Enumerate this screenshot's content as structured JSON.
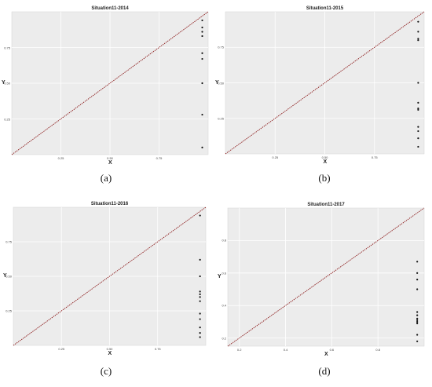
{
  "chart_data": [
    {
      "type": "scatter",
      "title": "Situation11-2014",
      "caption": "(a)",
      "xlabel": "X",
      "ylabel": "Y",
      "xlim": [
        0,
        1
      ],
      "ylim": [
        0,
        1
      ],
      "xticks": [
        0.25,
        0.5,
        0.75
      ],
      "xtick_labels": [
        "0.25",
        "0.50",
        "0.75"
      ],
      "yticks": [
        0.25,
        0.5,
        0.75
      ],
      "ytick_labels": [
        "0.25",
        "0.50",
        "0.75"
      ],
      "grid": true,
      "diagonal": [
        [
          0,
          0
        ],
        [
          1,
          1
        ]
      ],
      "diagonal_color": "#8b1a1a",
      "points": {
        "x": [
          0.97,
          0.97,
          0.97,
          0.97,
          0.97,
          0.97,
          0.97,
          0.97,
          0.97
        ],
        "y": [
          0.94,
          0.89,
          0.86,
          0.83,
          0.71,
          0.67,
          0.5,
          0.28,
          0.05
        ]
      }
    },
    {
      "type": "scatter",
      "title": "Situation11-2015",
      "caption": "(b)",
      "xlabel": "X",
      "ylabel": "Y",
      "xlim": [
        0,
        1
      ],
      "ylim": [
        0,
        1
      ],
      "xticks": [
        0.25,
        0.5,
        0.75
      ],
      "xtick_labels": [
        "0.25",
        "0.50",
        "0.75"
      ],
      "yticks": [
        0.25,
        0.5,
        0.75
      ],
      "ytick_labels": [
        "0.25",
        "0.50",
        "0.75"
      ],
      "grid": true,
      "diagonal": [
        [
          0,
          0
        ],
        [
          1,
          1
        ]
      ],
      "diagonal_color": "#8b1a1a",
      "points": {
        "x": [
          0.97,
          0.97,
          0.97,
          0.97,
          0.97,
          0.97,
          0.97,
          0.97,
          0.97,
          0.97,
          0.97,
          0.97
        ],
        "y": [
          0.93,
          0.86,
          0.81,
          0.8,
          0.5,
          0.36,
          0.32,
          0.31,
          0.19,
          0.16,
          0.11,
          0.05
        ]
      }
    },
    {
      "type": "scatter",
      "title": "Situation11-2016",
      "caption": "(c)",
      "xlabel": "X",
      "ylabel": "Y",
      "xlim": [
        0,
        1
      ],
      "ylim": [
        0,
        1
      ],
      "xticks": [
        0.25,
        0.5,
        0.75
      ],
      "xtick_labels": [
        "0.25",
        "0.50",
        "0.75"
      ],
      "yticks": [
        0.25,
        0.5,
        0.75
      ],
      "ytick_labels": [
        "0.25",
        "0.50",
        "0.75"
      ],
      "grid": true,
      "diagonal": [
        [
          0,
          0
        ],
        [
          1,
          1
        ]
      ],
      "diagonal_color": "#8b1a1a",
      "points": {
        "x": [
          0.97,
          0.97,
          0.97,
          0.97,
          0.97,
          0.97,
          0.97,
          0.97,
          0.97,
          0.97,
          0.97,
          0.97
        ],
        "y": [
          0.94,
          0.62,
          0.5,
          0.39,
          0.37,
          0.35,
          0.32,
          0.23,
          0.19,
          0.13,
          0.09,
          0.06
        ]
      }
    },
    {
      "type": "scatter",
      "title": "Situation11-2017",
      "caption": "(d)",
      "xlabel": "X",
      "ylabel": "Y",
      "xlim": [
        0.15,
        1
      ],
      "ylim": [
        0.15,
        1
      ],
      "xticks": [
        0.2,
        0.4,
        0.6,
        0.8
      ],
      "xtick_labels": [
        "0.2",
        "0.4",
        "0.6",
        "0.8"
      ],
      "yticks": [
        0.2,
        0.4,
        0.6,
        0.8
      ],
      "ytick_labels": [
        "0.2",
        "0.4",
        "0.6",
        "0.8"
      ],
      "grid": true,
      "diagonal": [
        [
          0.15,
          0.15
        ],
        [
          1,
          1
        ]
      ],
      "diagonal_color": "#8b1a1a",
      "points": {
        "x": [
          0.97,
          0.97,
          0.97,
          0.97,
          0.97,
          0.97,
          0.97,
          0.97,
          0.97,
          0.97,
          0.97,
          0.97
        ],
        "y": [
          0.67,
          0.6,
          0.56,
          0.5,
          0.36,
          0.34,
          0.32,
          0.31,
          0.3,
          0.29,
          0.22,
          0.18
        ]
      }
    }
  ],
  "colors": {
    "plot_background": "#ececec",
    "grid": "#ffffff",
    "point": "#111111"
  }
}
